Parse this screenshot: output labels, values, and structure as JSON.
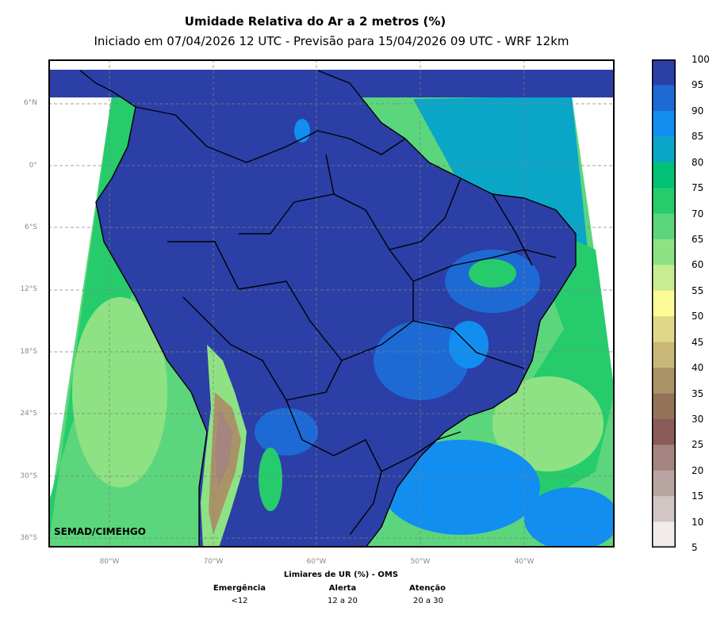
{
  "title": "Umidade Relativa do Ar a 2 metros (%)",
  "subtitle": "Iniciado em 07/04/2026 12 UTC - Previsão para 15/04/2026 09 UTC - WRF 12km",
  "map": {
    "lat_labels": [
      "6°N",
      "0°",
      "6°S",
      "12°S",
      "18°S",
      "24°S",
      "30°S",
      "36°S"
    ],
    "lon_labels": [
      "80°W",
      "70°W",
      "60°W",
      "50°W",
      "40°W"
    ],
    "watermark": "SEMAD/CIMEHGO",
    "colors": {
      "ocean_dry": "#5cd67c",
      "humid": "#2b3fa6",
      "mid": "#0aa6c8"
    }
  },
  "colorbar": {
    "ticks": [
      "100",
      "95",
      "90",
      "85",
      "80",
      "75",
      "70",
      "65",
      "60",
      "55",
      "50",
      "45",
      "40",
      "35",
      "30",
      "25",
      "20",
      "15",
      "10",
      "5"
    ],
    "colors": [
      "#2b3fa6",
      "#1e6ad4",
      "#118ef0",
      "#0aa6c8",
      "#03c177",
      "#26cc6c",
      "#5cd67c",
      "#8ee283",
      "#c6ee90",
      "#fcfc96",
      "#e0d888",
      "#c9b87a",
      "#ab9368",
      "#927357",
      "#8a5c58",
      "#a4857f",
      "#b8a4a0",
      "#d2c6c4",
      "#f1ebea"
    ]
  },
  "who": {
    "heading": "Limiares de UR (%) - OMS",
    "levels": [
      {
        "name": "Emergência",
        "range": "<12"
      },
      {
        "name": "Alerta",
        "range": "12 a 20"
      },
      {
        "name": "Atenção",
        "range": "20 a 30"
      }
    ]
  }
}
